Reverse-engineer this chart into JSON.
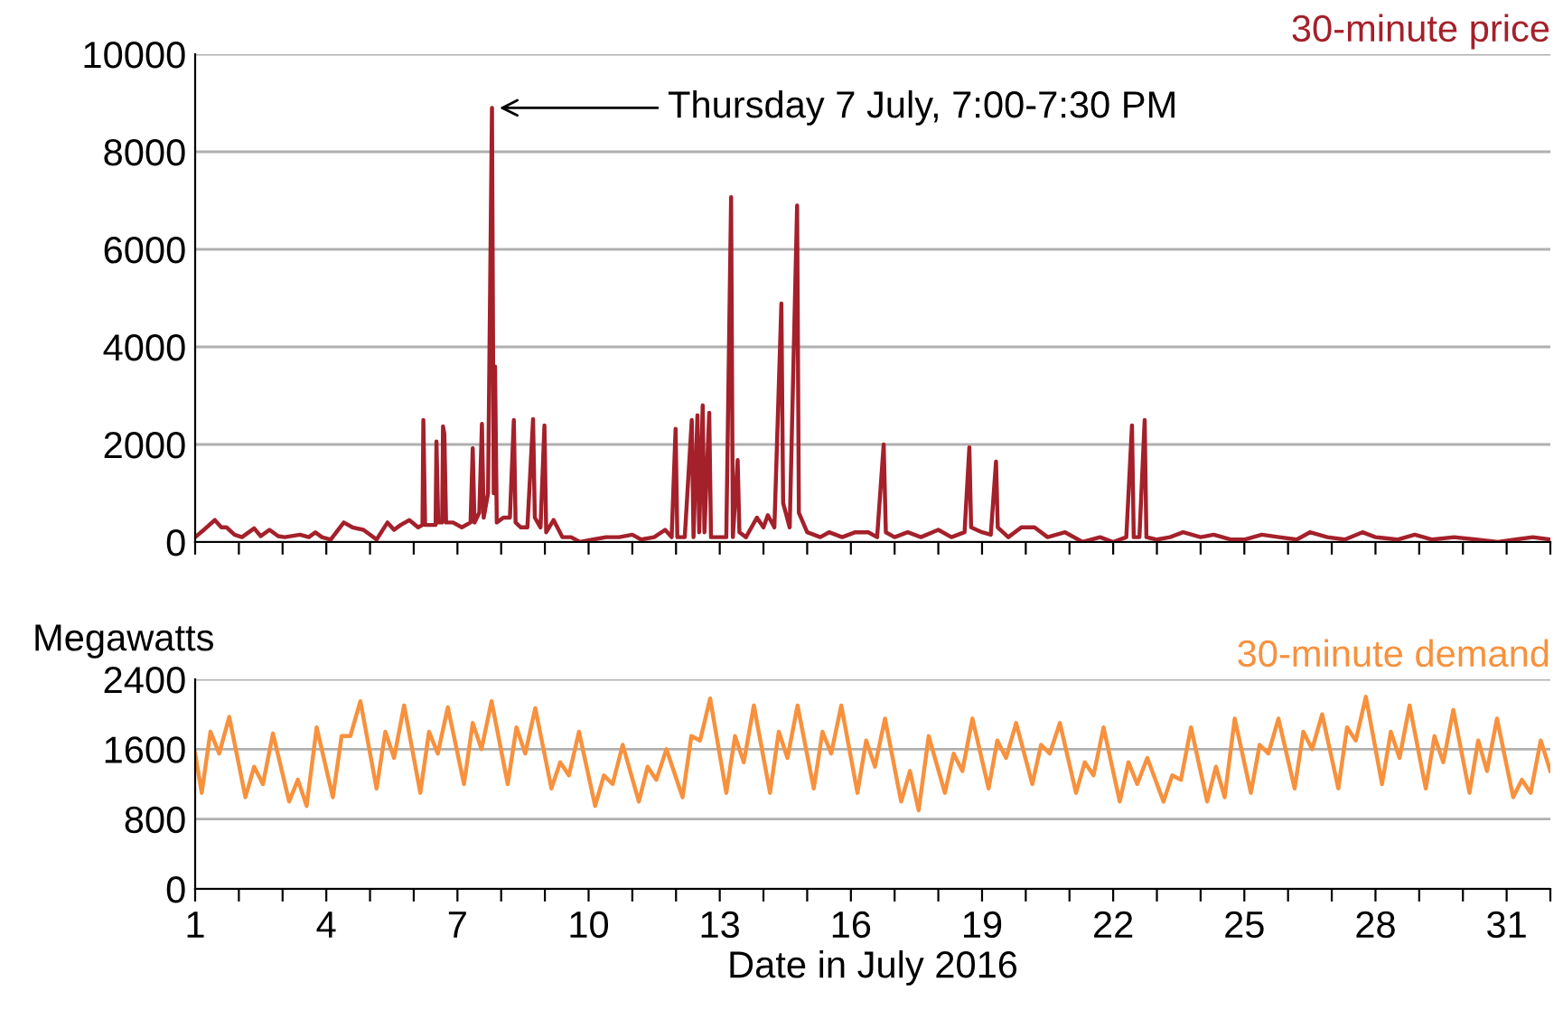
{
  "chart_data": [
    {
      "type": "line",
      "xlim": [
        1,
        32
      ],
      "xticks": [
        1,
        {
          "value": 2,
          "label": null
        },
        {
          "value": 3,
          "label": null
        },
        4,
        {
          "value": 5,
          "label": null
        },
        {
          "value": 6,
          "label": null
        },
        7,
        {
          "value": 8,
          "label": null
        },
        {
          "value": 9,
          "label": null
        },
        10,
        {
          "value": 11,
          "label": null
        },
        {
          "value": 12,
          "label": null
        },
        13,
        {
          "value": 14,
          "label": null
        },
        {
          "value": 15,
          "label": null
        },
        16,
        {
          "value": 17,
          "label": null
        },
        {
          "value": 18,
          "label": null
        },
        19,
        {
          "value": 20,
          "label": null
        },
        {
          "value": 21,
          "label": null
        },
        22,
        {
          "value": 23,
          "label": null
        },
        {
          "value": 24,
          "label": null
        },
        25,
        {
          "value": 26,
          "label": null
        },
        {
          "value": 27,
          "label": null
        },
        28,
        {
          "value": 29,
          "label": null
        },
        {
          "value": 30,
          "label": null
        },
        31,
        {
          "value": 32,
          "label": null
        }
      ],
      "ylim": [
        0,
        10000
      ],
      "yticks": [
        0,
        2000,
        4000,
        6000,
        8000,
        10000
      ],
      "grid": "y",
      "legend": false,
      "tick_labels": "y",
      "marker": "none",
      "line_style": "solid",
      "annotations": [
        {
          "text": "Thursday 7 July, 7:00-7:30 PM",
          "x": 7.79,
          "y": 8900
        }
      ],
      "series": [
        {
          "name": "30-minute price",
          "color": "#a4202a",
          "x": [
            1.0,
            1.2,
            1.45,
            1.6,
            1.72,
            1.9,
            2.07,
            2.35,
            2.5,
            2.7,
            2.9,
            3.05,
            3.4,
            3.6,
            3.75,
            3.9,
            4.1,
            4.4,
            4.6,
            4.85,
            5.15,
            5.4,
            5.55,
            5.7,
            5.9,
            6.1,
            6.2,
            6.22,
            6.26,
            6.5,
            6.52,
            6.56,
            6.65,
            6.67,
            6.7,
            6.74,
            6.9,
            7.1,
            7.3,
            7.35,
            7.39,
            7.5,
            7.56,
            7.6,
            7.7,
            7.79,
            7.83,
            7.86,
            7.9,
            8.05,
            8.2,
            8.29,
            8.33,
            8.45,
            8.6,
            8.73,
            8.77,
            8.9,
            8.99,
            9.03,
            9.2,
            9.4,
            9.6,
            9.8,
            10.1,
            10.4,
            10.7,
            11.0,
            11.2,
            11.5,
            11.75,
            11.9,
            11.99,
            12.03,
            12.2,
            12.36,
            12.4,
            12.49,
            12.53,
            12.61,
            12.65,
            12.76,
            12.8,
            13.0,
            13.15,
            13.26,
            13.3,
            13.41,
            13.45,
            13.6,
            13.85,
            14.0,
            14.1,
            14.25,
            14.41,
            14.45,
            14.6,
            14.77,
            14.81,
            15.0,
            15.3,
            15.5,
            15.8,
            16.1,
            16.4,
            16.6,
            16.75,
            16.8,
            17.0,
            17.3,
            17.6,
            18.0,
            18.3,
            18.6,
            18.71,
            18.75,
            19.0,
            19.2,
            19.32,
            19.36,
            19.6,
            19.9,
            20.2,
            20.5,
            20.9,
            21.3,
            21.7,
            22.0,
            22.3,
            22.43,
            22.47,
            22.6,
            22.72,
            22.76,
            23.0,
            23.3,
            23.6,
            24.0,
            24.3,
            24.7,
            25.0,
            25.4,
            25.8,
            26.2,
            26.5,
            26.9,
            27.3,
            27.7,
            28.0,
            28.5,
            28.9,
            29.3,
            29.8,
            30.3,
            30.8,
            31.2,
            31.6,
            32.0
          ],
          "values": [
            100,
            250,
            450,
            300,
            300,
            150,
            100,
            280,
            120,
            250,
            120,
            100,
            150,
            100,
            200,
            100,
            50,
            400,
            300,
            250,
            50,
            400,
            250,
            350,
            450,
            300,
            350,
            2500,
            350,
            350,
            2060,
            400,
            400,
            2370,
            2220,
            400,
            400,
            300,
            400,
            1920,
            400,
            600,
            2420,
            500,
            1000,
            8900,
            1000,
            3600,
            400,
            500,
            500,
            2500,
            400,
            300,
            300,
            2520,
            500,
            300,
            2390,
            200,
            450,
            100,
            100,
            0,
            50,
            100,
            100,
            150,
            50,
            100,
            250,
            100,
            2320,
            100,
            100,
            2500,
            100,
            2600,
            200,
            2800,
            200,
            2650,
            100,
            100,
            100,
            7070,
            100,
            1680,
            200,
            100,
            500,
            300,
            550,
            300,
            4890,
            800,
            300,
            6900,
            600,
            200,
            100,
            200,
            100,
            200,
            200,
            100,
            2000,
            200,
            100,
            200,
            100,
            250,
            100,
            200,
            1940,
            300,
            200,
            150,
            1650,
            300,
            100,
            300,
            300,
            100,
            200,
            0,
            100,
            0,
            100,
            2390,
            100,
            100,
            2500,
            100,
            50,
            100,
            200,
            100,
            150,
            50,
            50,
            150,
            100,
            50,
            200,
            100,
            50,
            200,
            100,
            50,
            150,
            50,
            100,
            50,
            0,
            50,
            100,
            50
          ]
        }
      ]
    },
    {
      "type": "line",
      "ylabel": "Megawatts",
      "xlabel": "Date in July 2016",
      "xlim": [
        1,
        32
      ],
      "xticks": [
        1,
        {
          "value": 2,
          "label": null
        },
        {
          "value": 3,
          "label": null
        },
        4,
        {
          "value": 5,
          "label": null
        },
        {
          "value": 6,
          "label": null
        },
        7,
        {
          "value": 8,
          "label": null
        },
        {
          "value": 9,
          "label": null
        },
        10,
        {
          "value": 11,
          "label": null
        },
        {
          "value": 12,
          "label": null
        },
        13,
        {
          "value": 14,
          "label": null
        },
        {
          "value": 15,
          "label": null
        },
        16,
        {
          "value": 17,
          "label": null
        },
        {
          "value": 18,
          "label": null
        },
        19,
        {
          "value": 20,
          "label": null
        },
        {
          "value": 21,
          "label": null
        },
        22,
        {
          "value": 23,
          "label": null
        },
        {
          "value": 24,
          "label": null
        },
        25,
        {
          "value": 26,
          "label": null
        },
        {
          "value": 27,
          "label": null
        },
        28,
        {
          "value": 29,
          "label": null
        },
        {
          "value": 30,
          "label": null
        },
        31,
        {
          "value": 32,
          "label": null
        }
      ],
      "ylim": [
        0,
        2400
      ],
      "yticks": [
        0,
        800,
        1600,
        2400
      ],
      "grid": "y",
      "legend": false,
      "marker": "none",
      "line_style": "solid",
      "series": [
        {
          "name": "30-minute demand",
          "color": "#f7913d",
          "x": [
            1.0,
            1.15,
            1.35,
            1.55,
            1.78,
            2.15,
            2.35,
            2.55,
            2.78,
            3.15,
            3.35,
            3.55,
            3.78,
            4.15,
            4.35,
            4.55,
            4.78,
            5.15,
            5.35,
            5.55,
            5.78,
            6.15,
            6.35,
            6.55,
            6.78,
            7.15,
            7.35,
            7.55,
            7.78,
            8.15,
            8.35,
            8.55,
            8.78,
            9.15,
            9.35,
            9.55,
            9.78,
            10.15,
            10.35,
            10.55,
            10.78,
            11.15,
            11.35,
            11.55,
            11.78,
            12.15,
            12.35,
            12.55,
            12.78,
            13.15,
            13.35,
            13.55,
            13.78,
            14.15,
            14.35,
            14.55,
            14.78,
            15.15,
            15.35,
            15.55,
            15.78,
            16.15,
            16.35,
            16.55,
            16.78,
            17.15,
            17.35,
            17.55,
            17.78,
            18.15,
            18.35,
            18.55,
            18.78,
            19.15,
            19.35,
            19.55,
            19.78,
            20.15,
            20.35,
            20.55,
            20.78,
            21.15,
            21.35,
            21.55,
            21.78,
            22.15,
            22.35,
            22.55,
            22.78,
            23.15,
            23.35,
            23.55,
            23.78,
            24.15,
            24.35,
            24.55,
            24.78,
            25.15,
            25.35,
            25.55,
            25.78,
            26.15,
            26.35,
            26.55,
            26.78,
            27.15,
            27.35,
            27.55,
            27.78,
            28.15,
            28.35,
            28.55,
            28.78,
            29.15,
            29.35,
            29.55,
            29.78,
            30.15,
            30.35,
            30.55,
            30.78,
            31.15,
            31.35,
            31.55,
            31.78,
            32.0
          ],
          "values": [
            1550,
            1100,
            1800,
            1550,
            1970,
            1050,
            1400,
            1200,
            1780,
            1000,
            1250,
            950,
            1850,
            1050,
            1750,
            1750,
            2150,
            1150,
            1800,
            1500,
            2100,
            1100,
            1800,
            1550,
            2080,
            1200,
            1900,
            1600,
            2150,
            1200,
            1850,
            1550,
            2070,
            1150,
            1450,
            1300,
            1800,
            950,
            1300,
            1200,
            1650,
            1000,
            1400,
            1250,
            1600,
            1050,
            1750,
            1700,
            2180,
            1100,
            1750,
            1450,
            2100,
            1100,
            1800,
            1500,
            2100,
            1150,
            1800,
            1550,
            2100,
            1100,
            1700,
            1400,
            1950,
            1000,
            1350,
            900,
            1750,
            1100,
            1550,
            1350,
            1950,
            1150,
            1700,
            1500,
            1900,
            1200,
            1650,
            1550,
            1900,
            1100,
            1450,
            1300,
            1850,
            1000,
            1450,
            1200,
            1500,
            1000,
            1300,
            1250,
            1850,
            1000,
            1400,
            1050,
            1950,
            1100,
            1650,
            1550,
            1950,
            1150,
            1800,
            1600,
            2000,
            1150,
            1850,
            1700,
            2200,
            1200,
            1800,
            1500,
            2100,
            1150,
            1750,
            1450,
            2050,
            1100,
            1700,
            1350,
            1950,
            1050,
            1250,
            1100,
            1700,
            1350
          ]
        }
      ]
    }
  ]
}
